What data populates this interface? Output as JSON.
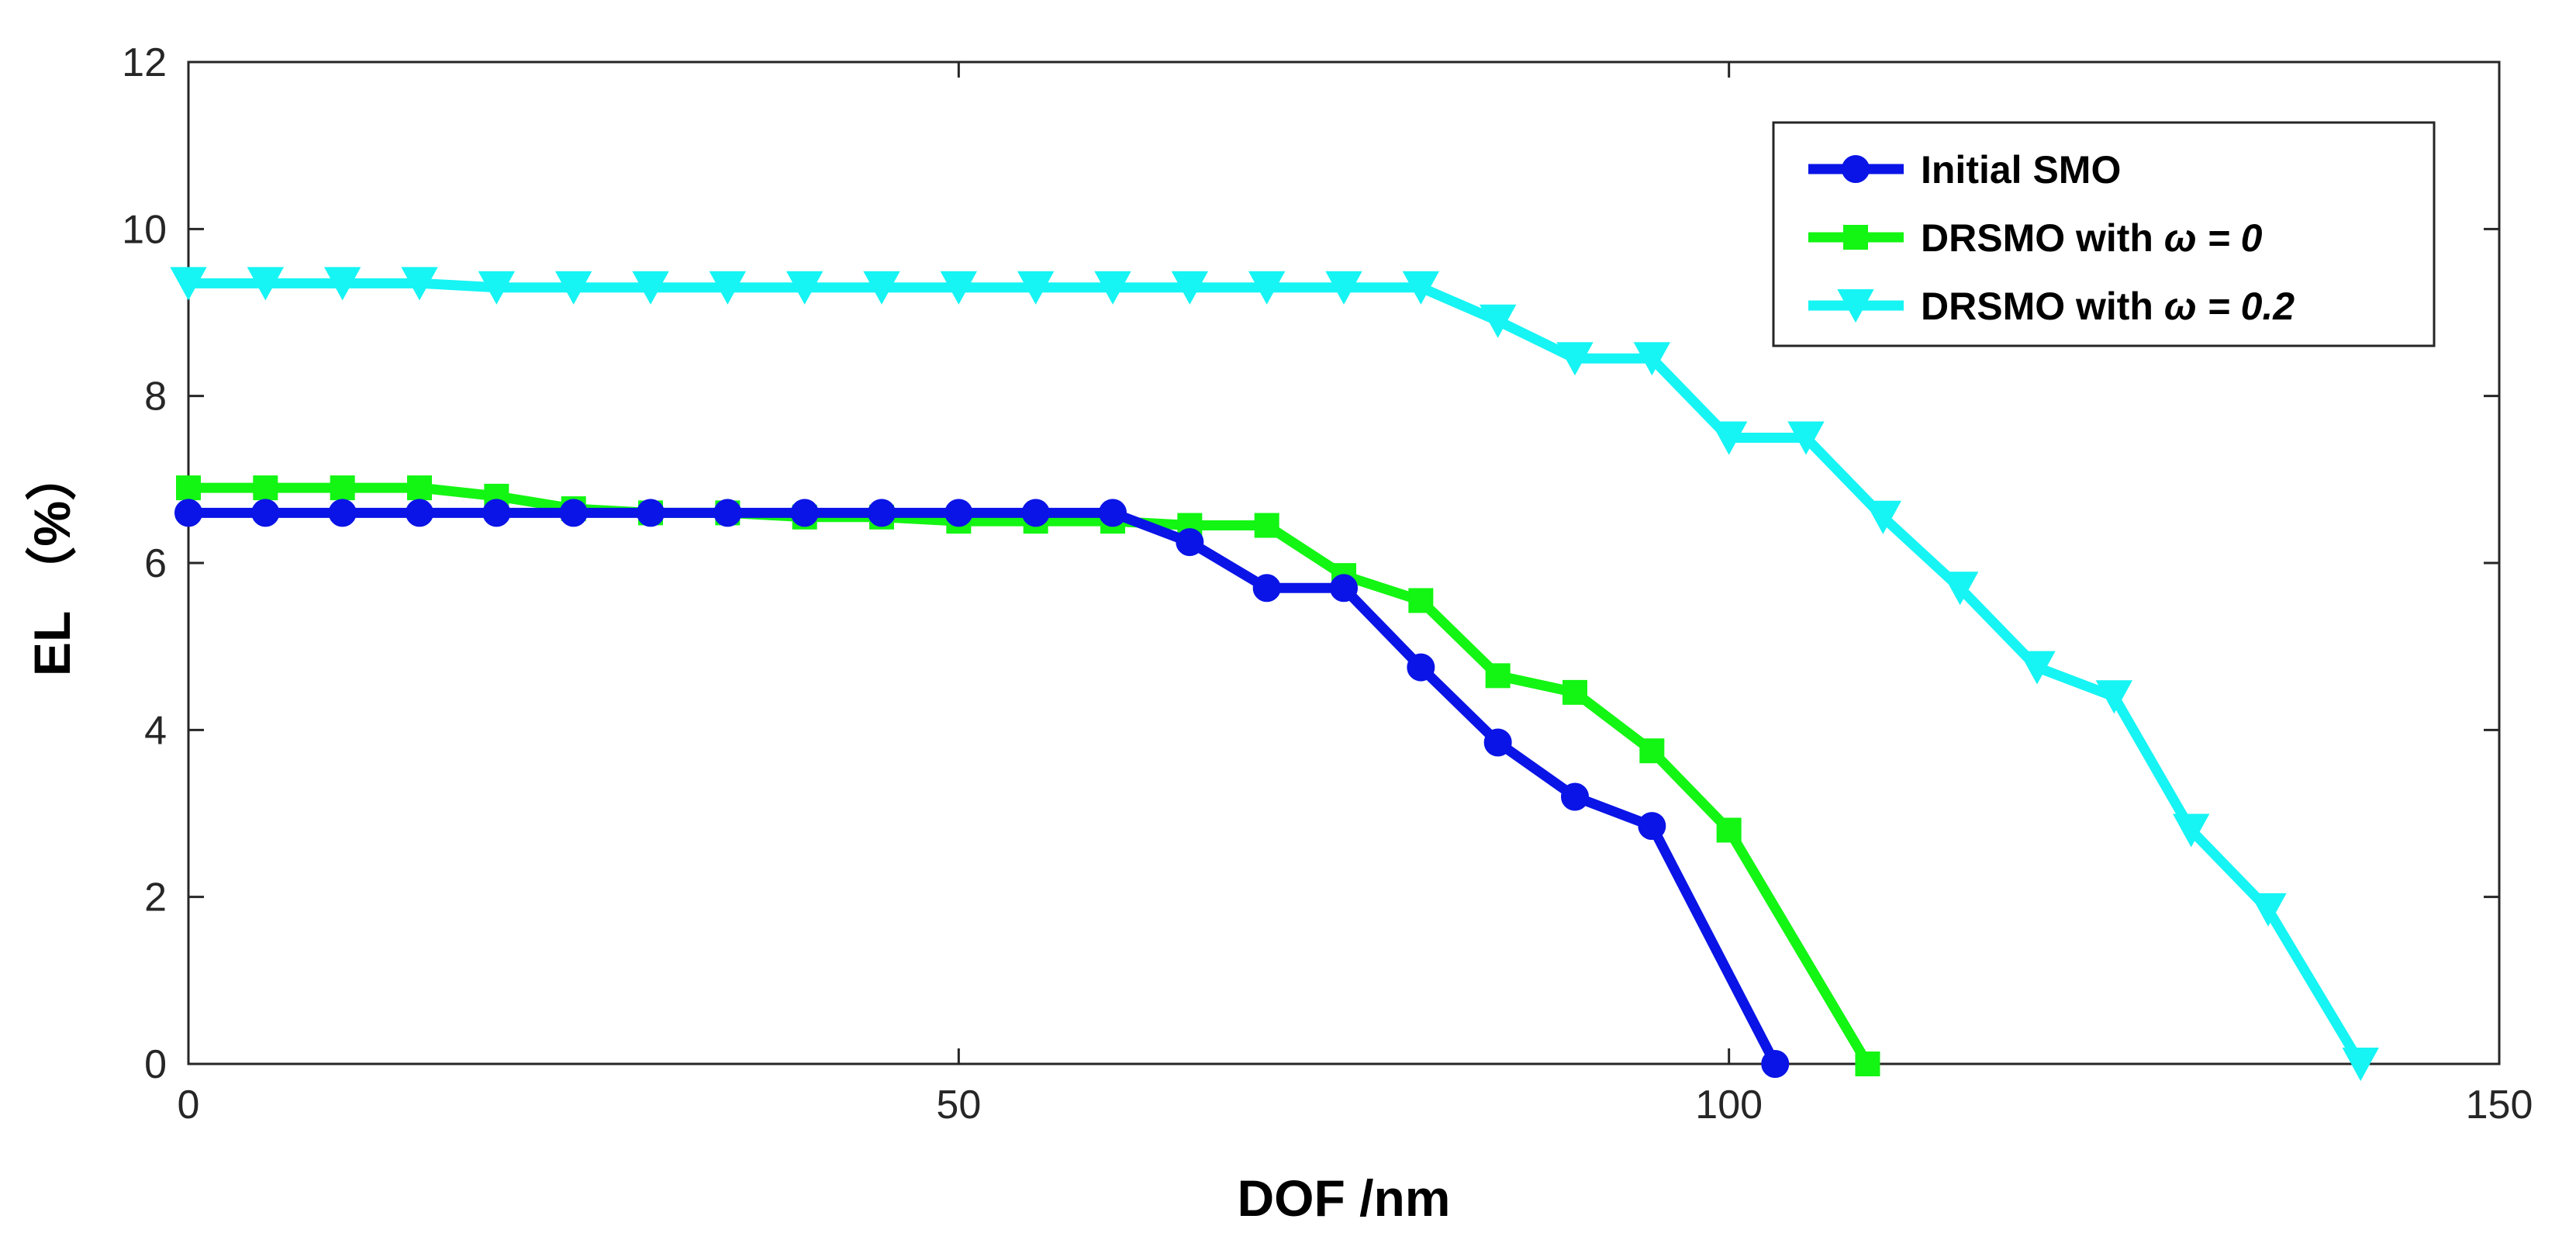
{
  "chart_data": {
    "type": "line",
    "title": "",
    "xlabel": "DOF /nm",
    "ylabel": "EL （%）",
    "xlim": [
      0,
      150
    ],
    "ylim": [
      0,
      12
    ],
    "xticks": [
      0,
      50,
      100,
      150
    ],
    "yticks": [
      0,
      2,
      4,
      6,
      8,
      10,
      12
    ],
    "grid": false,
    "legend_position": "top-right",
    "series": [
      {
        "name": "Initial SMO",
        "legend_prefix": "Initial SMO",
        "legend_symbol": "",
        "legend_value": "",
        "color": "#0a14e6",
        "marker": "circle",
        "x": [
          0,
          5,
          10,
          15,
          20,
          25,
          30,
          35,
          40,
          45,
          50,
          55,
          60,
          65,
          70,
          75,
          80,
          85,
          90,
          95,
          103
        ],
        "y": [
          6.6,
          6.6,
          6.6,
          6.6,
          6.6,
          6.6,
          6.6,
          6.6,
          6.6,
          6.6,
          6.6,
          6.6,
          6.6,
          6.25,
          5.7,
          5.7,
          4.75,
          3.85,
          3.2,
          2.85,
          0
        ]
      },
      {
        "name": "DRSMO with ω = 0",
        "legend_prefix": "DRSMO with ",
        "legend_symbol": "ω",
        "legend_value": " = 0",
        "color": "#13f513",
        "marker": "square",
        "x": [
          0,
          5,
          10,
          15,
          20,
          25,
          30,
          35,
          40,
          45,
          50,
          55,
          60,
          65,
          70,
          75,
          80,
          85,
          90,
          95,
          100,
          109
        ],
        "y": [
          6.9,
          6.9,
          6.9,
          6.9,
          6.8,
          6.65,
          6.6,
          6.6,
          6.55,
          6.55,
          6.5,
          6.5,
          6.5,
          6.45,
          6.45,
          5.85,
          5.55,
          4.65,
          4.45,
          3.75,
          2.8,
          0
        ]
      },
      {
        "name": "DRSMO with ω = 0.2",
        "legend_prefix": "DRSMO with ",
        "legend_symbol": "ω",
        "legend_value": " = 0.2",
        "color": "#16f4f4",
        "marker": "triangle-down",
        "x": [
          0,
          5,
          10,
          15,
          20,
          25,
          30,
          35,
          40,
          45,
          50,
          55,
          60,
          65,
          70,
          75,
          80,
          85,
          90,
          95,
          100,
          105,
          110,
          115,
          120,
          125,
          130,
          135,
          141
        ],
        "y": [
          9.35,
          9.35,
          9.35,
          9.35,
          9.3,
          9.3,
          9.3,
          9.3,
          9.3,
          9.3,
          9.3,
          9.3,
          9.3,
          9.3,
          9.3,
          9.3,
          9.3,
          8.9,
          8.45,
          8.45,
          7.5,
          7.5,
          6.55,
          5.7,
          4.75,
          4.4,
          2.8,
          1.85,
          0
        ]
      }
    ]
  }
}
